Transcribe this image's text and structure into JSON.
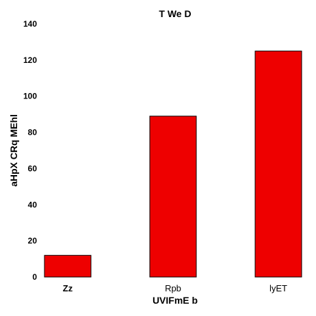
{
  "chart_data": {
    "type": "bar",
    "title": "T We  D",
    "xlabel": "UVIFmE b",
    "ylabel": "aHpX  CRq MEhl",
    "categories": [
      "Zz",
      "Rpb",
      "lyET"
    ],
    "values": [
      12,
      89,
      125
    ],
    "ylim": [
      0,
      140
    ],
    "yticks": [
      0,
      20,
      40,
      60,
      80,
      100,
      120,
      140
    ],
    "bar_color": "#ee0000",
    "grid": false,
    "legend": "none"
  }
}
